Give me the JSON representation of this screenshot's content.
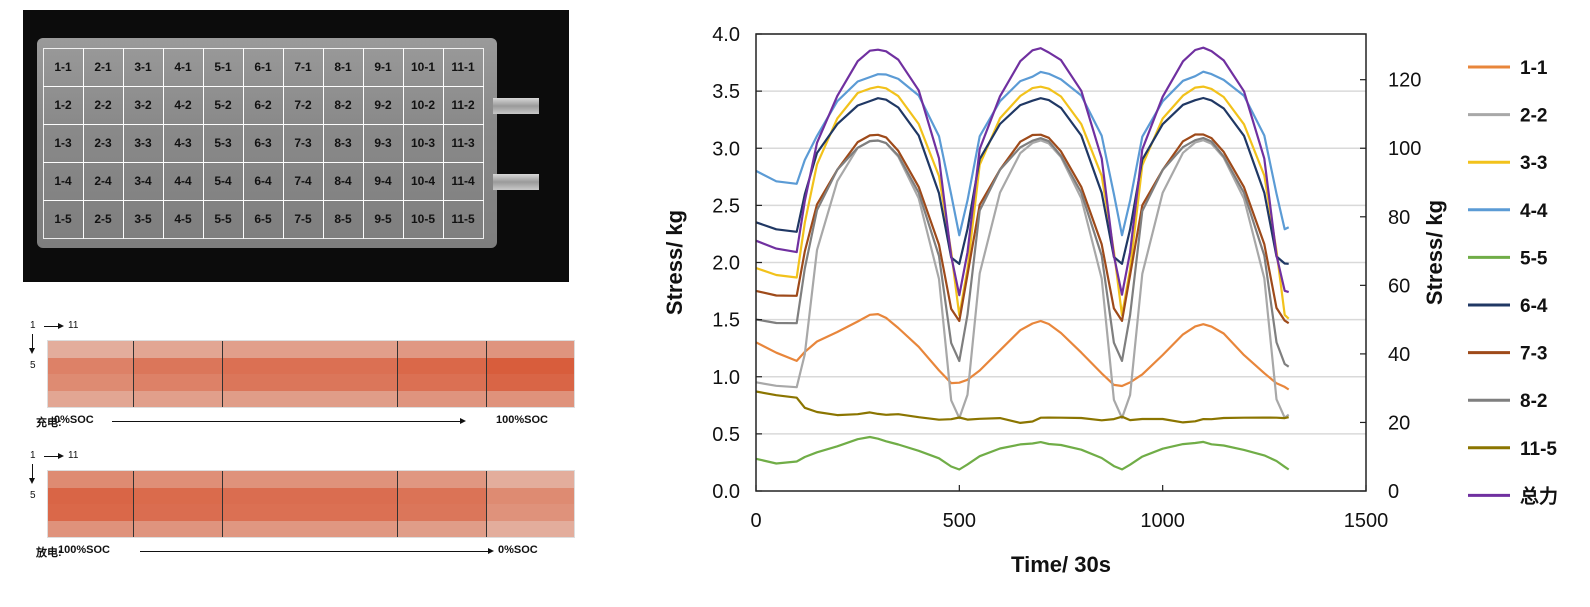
{
  "photo": {
    "cells": [
      [
        "1-1",
        "2-1",
        "3-1",
        "4-1",
        "5-1",
        "6-1",
        "7-1",
        "8-1",
        "9-1",
        "10-1",
        "11-1"
      ],
      [
        "1-2",
        "2-2",
        "3-2",
        "4-2",
        "5-2",
        "6-2",
        "7-2",
        "8-2",
        "9-2",
        "10-2",
        "11-2"
      ],
      [
        "1-3",
        "2-3",
        "3-3",
        "4-3",
        "5-3",
        "6-3",
        "7-3",
        "8-3",
        "9-3",
        "10-3",
        "11-3"
      ],
      [
        "1-4",
        "2-4",
        "3-4",
        "4-4",
        "5-4",
        "6-4",
        "7-4",
        "8-4",
        "9-4",
        "10-4",
        "11-4"
      ],
      [
        "1-5",
        "2-5",
        "3-5",
        "4-5",
        "5-5",
        "6-5",
        "7-5",
        "8-5",
        "9-5",
        "10-5",
        "11-5"
      ]
    ]
  },
  "heatmaps": [
    {
      "col_start": "1",
      "col_end": "11",
      "row_end": "5",
      "mode": "充电:",
      "start_soc": "0%SOC",
      "end_soc": "100%SOC",
      "frames": [
        [
          0.3,
          0.62,
          0.55,
          0.35
        ],
        [
          0.35,
          0.7,
          0.62,
          0.4
        ],
        [
          0.4,
          0.74,
          0.7,
          0.42
        ],
        [
          0.45,
          0.8,
          0.74,
          0.48
        ],
        [
          0.48,
          0.88,
          0.82,
          0.5
        ]
      ]
    },
    {
      "col_start": "1",
      "col_end": "11",
      "row_end": "5",
      "mode": "放电:",
      "start_soc": "100%SOC",
      "end_soc": "0%SOC",
      "frames": [
        [
          0.55,
          0.82,
          0.8,
          0.5
        ],
        [
          0.52,
          0.78,
          0.76,
          0.48
        ],
        [
          0.5,
          0.76,
          0.74,
          0.46
        ],
        [
          0.46,
          0.72,
          0.7,
          0.42
        ],
        [
          0.3,
          0.55,
          0.5,
          0.3
        ]
      ]
    }
  ],
  "chart_data": {
    "type": "line",
    "xlabel": "Time/ 30s",
    "ylabel": "Stress/ kg",
    "y2label": "Stress/ kg",
    "xlim": [
      0,
      1500
    ],
    "ylim": [
      0,
      4
    ],
    "y2lim": [
      0,
      133.33
    ],
    "xticks": [
      "0",
      "500",
      "1000",
      "1500"
    ],
    "yticks": [
      "0.0",
      "0.5",
      "1.0",
      "1.5",
      "2.0",
      "2.5",
      "3.0",
      "3.5",
      "4.0"
    ],
    "y2ticks": [
      "0",
      "20",
      "40",
      "60",
      "80",
      "100",
      "120"
    ],
    "grid": "horizontal",
    "legend": "right",
    "x": [
      0,
      50,
      100,
      120,
      150,
      200,
      250,
      280,
      300,
      320,
      350,
      400,
      450,
      480,
      500,
      520,
      550,
      600,
      650,
      680,
      700,
      720,
      750,
      800,
      850,
      880,
      900,
      920,
      950,
      1000,
      1050,
      1080,
      1100,
      1120,
      1150,
      1200,
      1250,
      1280,
      1300,
      1310
    ],
    "series": [
      {
        "name": "1-1",
        "color": "#E8863B",
        "axis": "left",
        "values": [
          1.3,
          1.22,
          1.15,
          1.22,
          1.3,
          1.38,
          1.48,
          1.55,
          1.56,
          1.52,
          1.42,
          1.25,
          1.05,
          0.95,
          0.96,
          0.98,
          1.05,
          1.22,
          1.4,
          1.47,
          1.5,
          1.47,
          1.38,
          1.2,
          1.02,
          0.93,
          0.93,
          0.96,
          1.02,
          1.18,
          1.36,
          1.44,
          1.47,
          1.45,
          1.38,
          1.18,
          1.02,
          0.94,
          0.92,
          0.9
        ]
      },
      {
        "name": "2-2",
        "color": "#A8A8A8",
        "axis": "left",
        "values": [
          0.95,
          0.93,
          0.92,
          1.2,
          2.1,
          2.7,
          3.0,
          3.07,
          3.08,
          3.05,
          2.92,
          2.55,
          1.85,
          0.8,
          0.65,
          0.85,
          1.9,
          2.6,
          2.95,
          3.05,
          3.08,
          3.05,
          2.92,
          2.55,
          1.85,
          0.8,
          0.65,
          0.85,
          1.9,
          2.6,
          2.95,
          3.05,
          3.08,
          3.05,
          2.92,
          2.55,
          1.85,
          0.8,
          0.65,
          0.68
        ]
      },
      {
        "name": "3-3",
        "color": "#F2C21B",
        "axis": "left",
        "values": [
          1.95,
          1.9,
          1.88,
          2.35,
          2.85,
          3.25,
          3.48,
          3.53,
          3.55,
          3.53,
          3.45,
          3.2,
          2.75,
          2.1,
          1.55,
          1.95,
          2.85,
          3.25,
          3.45,
          3.53,
          3.55,
          3.53,
          3.45,
          3.2,
          2.75,
          2.1,
          1.55,
          1.95,
          2.85,
          3.25,
          3.45,
          3.53,
          3.55,
          3.53,
          3.45,
          3.2,
          2.75,
          2.1,
          1.55,
          1.52
        ]
      },
      {
        "name": "4-4",
        "color": "#5B9BD5",
        "axis": "left",
        "values": [
          2.8,
          2.72,
          2.7,
          2.9,
          3.1,
          3.4,
          3.58,
          3.63,
          3.66,
          3.65,
          3.6,
          3.45,
          3.1,
          2.6,
          2.25,
          2.55,
          3.1,
          3.4,
          3.58,
          3.63,
          3.68,
          3.66,
          3.6,
          3.45,
          3.1,
          2.6,
          2.25,
          2.55,
          3.1,
          3.4,
          3.58,
          3.63,
          3.68,
          3.66,
          3.6,
          3.45,
          3.1,
          2.6,
          2.3,
          2.32
        ]
      },
      {
        "name": "5-5",
        "color": "#70AD47",
        "axis": "left",
        "values": [
          0.28,
          0.25,
          0.27,
          0.3,
          0.33,
          0.38,
          0.45,
          0.48,
          0.47,
          0.44,
          0.4,
          0.34,
          0.28,
          0.22,
          0.2,
          0.24,
          0.3,
          0.36,
          0.4,
          0.42,
          0.44,
          0.42,
          0.4,
          0.35,
          0.28,
          0.22,
          0.2,
          0.24,
          0.3,
          0.36,
          0.4,
          0.42,
          0.44,
          0.42,
          0.4,
          0.35,
          0.3,
          0.26,
          0.22,
          0.2
        ]
      },
      {
        "name": "6-4",
        "color": "#203864",
        "axis": "left",
        "values": [
          2.35,
          2.3,
          2.28,
          2.6,
          2.95,
          3.2,
          3.37,
          3.42,
          3.45,
          3.43,
          3.35,
          3.1,
          2.6,
          2.05,
          2.0,
          2.3,
          2.9,
          3.2,
          3.37,
          3.42,
          3.45,
          3.43,
          3.35,
          3.1,
          2.6,
          2.05,
          2.0,
          2.3,
          2.9,
          3.2,
          3.37,
          3.42,
          3.45,
          3.43,
          3.35,
          3.1,
          2.6,
          2.05,
          2.0,
          2.0
        ]
      },
      {
        "name": "7-3",
        "color": "#9E4A1A",
        "axis": "left",
        "values": [
          1.75,
          1.72,
          1.72,
          2.1,
          2.5,
          2.8,
          3.05,
          3.12,
          3.13,
          3.1,
          2.97,
          2.65,
          2.15,
          1.6,
          1.5,
          1.9,
          2.5,
          2.8,
          3.05,
          3.12,
          3.13,
          3.1,
          2.97,
          2.65,
          2.15,
          1.6,
          1.5,
          1.9,
          2.5,
          2.8,
          3.05,
          3.12,
          3.13,
          3.1,
          2.97,
          2.65,
          2.15,
          1.6,
          1.5,
          1.48
        ]
      },
      {
        "name": "8-2",
        "color": "#7F7F7F",
        "axis": "left",
        "values": [
          1.5,
          1.48,
          1.48,
          1.95,
          2.45,
          2.8,
          3.0,
          3.07,
          3.08,
          3.05,
          2.93,
          2.6,
          2.05,
          1.3,
          1.15,
          1.55,
          2.45,
          2.8,
          3.0,
          3.07,
          3.1,
          3.07,
          2.93,
          2.6,
          2.05,
          1.3,
          1.15,
          1.55,
          2.45,
          2.8,
          3.0,
          3.07,
          3.1,
          3.07,
          2.93,
          2.6,
          2.05,
          1.3,
          1.12,
          1.1
        ]
      },
      {
        "name": "11-5",
        "color": "#8B7500",
        "axis": "left",
        "values": [
          0.88,
          0.85,
          0.82,
          0.72,
          0.68,
          0.66,
          0.68,
          0.7,
          0.68,
          0.66,
          0.66,
          0.64,
          0.63,
          0.64,
          0.65,
          0.62,
          0.62,
          0.63,
          0.6,
          0.62,
          0.65,
          0.64,
          0.63,
          0.63,
          0.62,
          0.64,
          0.66,
          0.62,
          0.62,
          0.62,
          0.6,
          0.62,
          0.64,
          0.63,
          0.63,
          0.63,
          0.64,
          0.65,
          0.65,
          0.65
        ]
      },
      {
        "name": "总力",
        "color": "#7030A0",
        "axis": "left",
        "values": [
          2.18,
          2.12,
          2.1,
          2.55,
          3.05,
          3.45,
          3.75,
          3.85,
          3.87,
          3.86,
          3.78,
          3.5,
          2.9,
          2.05,
          1.72,
          2.1,
          3.0,
          3.45,
          3.75,
          3.85,
          3.88,
          3.85,
          3.78,
          3.5,
          2.9,
          2.05,
          1.72,
          2.1,
          3.0,
          3.45,
          3.75,
          3.85,
          3.88,
          3.86,
          3.78,
          3.5,
          2.9,
          2.05,
          1.75,
          1.75
        ]
      }
    ]
  }
}
